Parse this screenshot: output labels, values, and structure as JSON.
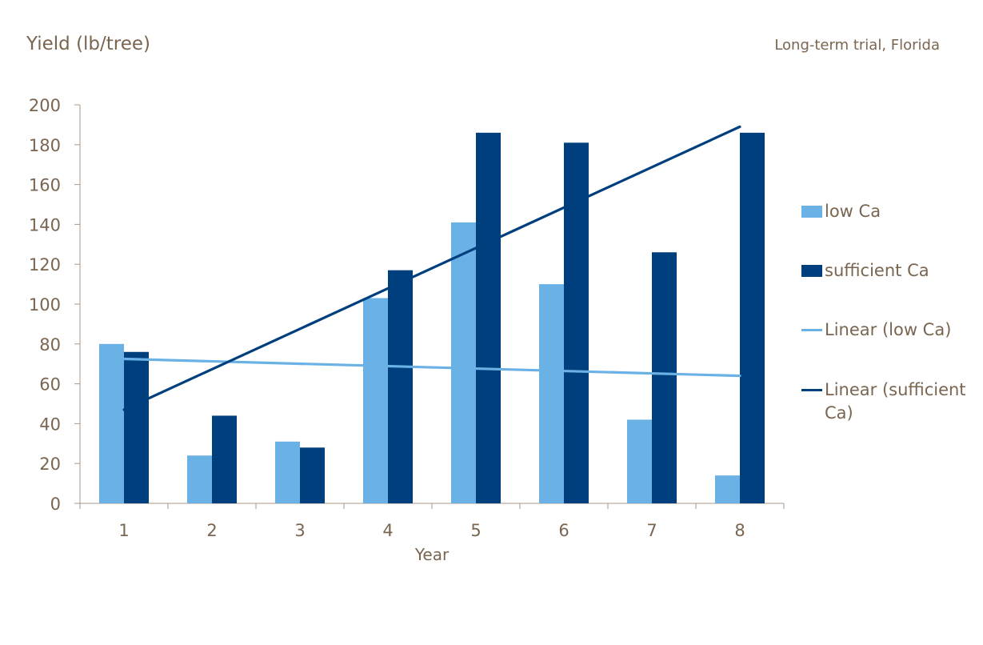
{
  "header": {
    "ylabel": "Yield (lb/tree)",
    "note": "Long-term trial, Florida"
  },
  "chart_data": {
    "type": "bar",
    "categories": [
      "1",
      "2",
      "3",
      "4",
      "5",
      "6",
      "7",
      "8"
    ],
    "series": [
      {
        "name": "low Ca",
        "values": [
          80,
          24,
          31,
          103,
          141,
          110,
          42,
          14
        ],
        "color": "#6ab1e6"
      },
      {
        "name": "sufficient Ca",
        "values": [
          76,
          44,
          28,
          117,
          186,
          181,
          126,
          186
        ],
        "color": "#003f7e"
      }
    ],
    "trendlines": [
      {
        "name": "Linear (low Ca)",
        "start": 72.5,
        "end": 64,
        "color": "#6ab1e6"
      },
      {
        "name": "Linear (sufficient Ca)",
        "start": 47,
        "end": 189,
        "color": "#003f7e"
      }
    ],
    "xlabel": "Year",
    "ylabel": "Yield (lb/tree)",
    "ylim": [
      0,
      200
    ],
    "yticks": [
      0,
      20,
      40,
      60,
      80,
      100,
      120,
      140,
      160,
      180,
      200
    ],
    "grid": false,
    "legend_position": "right"
  },
  "legend": [
    {
      "label": "low Ca",
      "kind": "bar",
      "color": "#6ab1e6"
    },
    {
      "label": "sufficient Ca",
      "kind": "bar",
      "color": "#003f7e"
    },
    {
      "label": "Linear (low Ca)",
      "kind": "line",
      "color": "#6ab1e6"
    },
    {
      "label": "Linear (sufficient Ca)",
      "kind": "line",
      "color": "#003f7e"
    }
  ]
}
